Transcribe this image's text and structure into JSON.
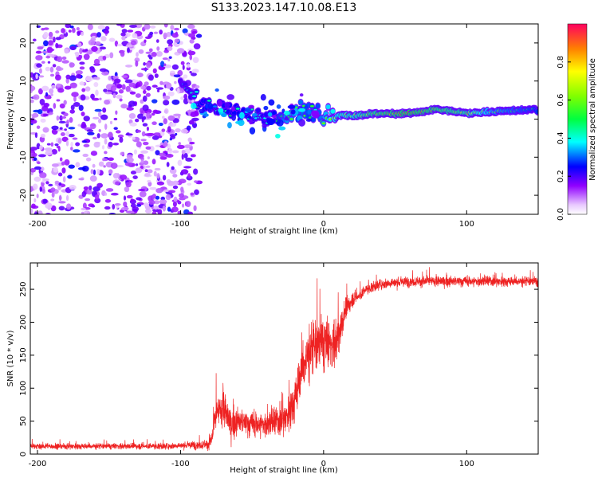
{
  "figure_title": "S133.2023.147.10.08.E13",
  "colors": {
    "snr_line": "#ee2222",
    "axis": "#000000",
    "background": "#ffffff"
  },
  "chart_data": [
    {
      "type": "heatmap",
      "panel": "top",
      "title": "S133.2023.147.10.08.E13",
      "xlabel": "Height of straight line (km)",
      "ylabel": "Frequency (Hz)",
      "xlim": [
        -205,
        150
      ],
      "ylim": [
        -25,
        25
      ],
      "x_ticks": [
        -200,
        -100,
        0,
        100
      ],
      "x_tick_labels": [
        "-200",
        "-100",
        "0",
        "100"
      ],
      "y_ticks": [
        -20,
        -10,
        0,
        10,
        20
      ],
      "y_tick_labels": [
        "-20",
        "-10",
        "0",
        "10",
        "20"
      ],
      "colorbar": {
        "label": "Normalized spectral amplitude",
        "range": [
          0,
          1
        ],
        "ticks": [
          0.0,
          0.2,
          0.4,
          0.6,
          0.8
        ],
        "tick_labels": [
          "0.0",
          "0.2",
          "0.4",
          "0.6",
          "0.8"
        ]
      },
      "description_points": {
        "noise_region_x": [
          -205,
          -87
        ],
        "noise_amplitude": 0.15,
        "signal_ridge": [
          {
            "x": -100,
            "y": 10,
            "amp": 0.35
          },
          {
            "x": -92,
            "y": 7,
            "amp": 0.4
          },
          {
            "x": -85,
            "y": 4,
            "amp": 0.45
          },
          {
            "x": -75,
            "y": 3,
            "amp": 0.4
          },
          {
            "x": -65,
            "y": 2,
            "amp": 0.45
          },
          {
            "x": -55,
            "y": 1,
            "amp": 0.45
          },
          {
            "x": -45,
            "y": 1,
            "amp": 0.4
          },
          {
            "x": -35,
            "y": 0,
            "amp": 0.45
          },
          {
            "x": -25,
            "y": 1,
            "amp": 0.6
          },
          {
            "x": -15,
            "y": 2,
            "amp": 0.55
          },
          {
            "x": -5,
            "y": 2,
            "amp": 0.5
          },
          {
            "x": 5,
            "y": 1,
            "amp": 0.7
          },
          {
            "x": 20,
            "y": 1,
            "amp": 0.75
          },
          {
            "x": 40,
            "y": 1.5,
            "amp": 0.85
          },
          {
            "x": 60,
            "y": 1.5,
            "amp": 0.9
          },
          {
            "x": 80,
            "y": 2.5,
            "amp": 0.85
          },
          {
            "x": 100,
            "y": 1.5,
            "amp": 0.8
          },
          {
            "x": 120,
            "y": 2,
            "amp": 0.6
          },
          {
            "x": 150,
            "y": 2.5,
            "amp": 0.5
          }
        ]
      }
    },
    {
      "type": "line",
      "panel": "bottom",
      "title": "",
      "xlabel": "Height of straight line (km)",
      "ylabel": "SNR (10 * v/v)",
      "xlim": [
        -205,
        150
      ],
      "ylim": [
        0,
        290
      ],
      "x_ticks": [
        -200,
        -100,
        0,
        100
      ],
      "x_tick_labels": [
        "-200",
        "-100",
        "0",
        "100"
      ],
      "y_ticks": [
        0,
        50,
        100,
        150,
        200,
        250
      ],
      "y_tick_labels": [
        "0",
        "50",
        "100",
        "150",
        "200",
        "250"
      ],
      "series": [
        {
          "name": "SNR",
          "x": [
            -205,
            -110,
            -100,
            -90,
            -80,
            -78,
            -75,
            -70,
            -65,
            -60,
            -50,
            -40,
            -30,
            -25,
            -20,
            -15,
            -10,
            -5,
            0,
            5,
            10,
            15,
            20,
            25,
            30,
            40,
            50,
            60,
            80,
            100,
            120,
            150
          ],
          "values": [
            12,
            12,
            13,
            14,
            15,
            25,
            60,
            70,
            45,
            50,
            45,
            45,
            50,
            60,
            85,
            130,
            155,
            165,
            170,
            165,
            175,
            215,
            235,
            240,
            250,
            258,
            260,
            262,
            262,
            262,
            262,
            262
          ],
          "noise": [
            6,
            6,
            6,
            8,
            10,
            15,
            30,
            35,
            30,
            25,
            25,
            25,
            30,
            35,
            45,
            55,
            55,
            60,
            55,
            50,
            45,
            25,
            15,
            12,
            10,
            10,
            10,
            10,
            10,
            10,
            10,
            10
          ]
        }
      ]
    }
  ]
}
